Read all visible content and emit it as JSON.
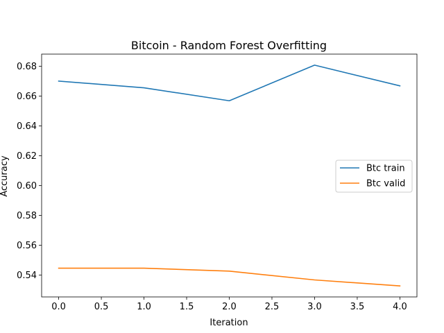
{
  "chart_data": {
    "type": "line",
    "title": "Bitcoin - Random Forest Overfitting",
    "xlabel": "Iteration",
    "ylabel": "Accuracy",
    "x": [
      0,
      1,
      2,
      3,
      4
    ],
    "series": [
      {
        "name": "Btc train",
        "color": "#1f77b4",
        "values": [
          0.6701,
          0.6656,
          0.6569,
          0.6808,
          0.6669
        ]
      },
      {
        "name": "Btc valid",
        "color": "#ff7f0e",
        "values": [
          0.5446,
          0.5446,
          0.5426,
          0.5367,
          0.5327
        ]
      }
    ],
    "xlim": [
      -0.2,
      4.2
    ],
    "ylim": [
      0.5253,
      0.6882
    ],
    "xticks": [
      0.0,
      0.5,
      1.0,
      1.5,
      2.0,
      2.5,
      3.0,
      3.5,
      4.0
    ],
    "xtick_labels": [
      "0.0",
      "0.5",
      "1.0",
      "1.5",
      "2.0",
      "2.5",
      "3.0",
      "3.5",
      "4.0"
    ],
    "yticks": [
      0.54,
      0.56,
      0.58,
      0.6,
      0.62,
      0.64,
      0.66,
      0.68
    ],
    "ytick_labels": [
      "0.54",
      "0.56",
      "0.58",
      "0.60",
      "0.62",
      "0.64",
      "0.66",
      "0.68"
    ],
    "grid": false,
    "legend_position": "center-right"
  }
}
